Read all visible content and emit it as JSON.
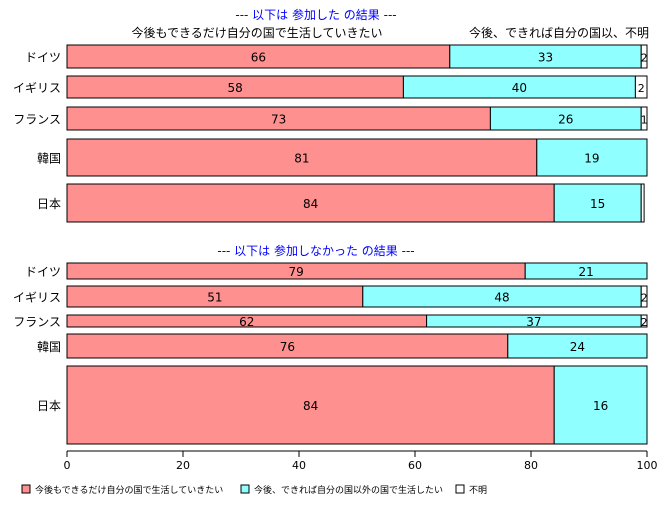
{
  "colors": {
    "keep": "#ff9090",
    "abroad": "#90ffff",
    "unknown": "#ffffff",
    "section_title": "#0000ff",
    "outline": "#000000"
  },
  "col_headers": {
    "keep": "今後もできるだけ自分の国で生活していきたい",
    "abroad": "今後、できれば自分の国以、不明"
  },
  "chart_data": [
    {
      "type": "bar",
      "stacked": true,
      "orientation": "horizontal",
      "title": "--- 以下は 参加した の結果 ---",
      "categories": [
        "ドイツ",
        "イギリス",
        "フランス",
        "韓国",
        "日本"
      ],
      "series": [
        {
          "name": "今後もできるだけ自分の国で生活していきたい",
          "color": "#ff9090",
          "values": [
            66,
            58,
            73,
            81,
            84
          ]
        },
        {
          "name": "今後、できれば自分の国以外の国で生活したい",
          "color": "#90ffff",
          "values": [
            33,
            40,
            26,
            19,
            15
          ]
        },
        {
          "name": "不明",
          "color": "#ffffff",
          "values": [
            2,
            2,
            1,
            0.5,
            0.5
          ]
        }
      ],
      "value_labels": {
        "series0": [
          "66",
          "58",
          "73",
          "81",
          "84"
        ],
        "series1": [
          "33",
          "40",
          "26",
          "19",
          "15"
        ],
        "series2": [
          "2",
          "2",
          "1",
          "",
          ""
        ]
      }
    },
    {
      "type": "bar",
      "stacked": true,
      "orientation": "horizontal",
      "title": "--- 以下は 参加しなかった の結果 ---",
      "categories": [
        "ドイツ",
        "イギリス",
        "フランス",
        "韓国",
        "日本"
      ],
      "series": [
        {
          "name": "今後もできるだけ自分の国で生活していきたい",
          "color": "#ff9090",
          "values": [
            79,
            51,
            62,
            76,
            84
          ]
        },
        {
          "name": "今後、できれば自分の国以外の国で生活したい",
          "color": "#90ffff",
          "values": [
            21,
            48,
            37,
            24,
            16
          ]
        },
        {
          "name": "不明",
          "color": "#ffffff",
          "values": [
            0,
            2,
            2,
            0.5,
            0.5
          ]
        }
      ],
      "value_labels": {
        "series0": [
          "79",
          "51",
          "62",
          "76",
          "84"
        ],
        "series1": [
          "21",
          "48",
          "37",
          "24",
          "16"
        ],
        "series2": [
          "",
          "2",
          "2",
          "",
          ""
        ]
      }
    }
  ],
  "x_axis": {
    "ticks": [
      0,
      20,
      40,
      60,
      80,
      100
    ],
    "tick_labels": [
      "0",
      "20",
      "40",
      "60",
      "80",
      "100"
    ],
    "xlim": [
      0,
      100
    ]
  },
  "legend": {
    "placement": "bottom",
    "items": [
      {
        "label": "今後もできるだけ自分の国で生活していきたい",
        "color": "#ff9090"
      },
      {
        "label": "今後、できれば自分の国以外の国で生活したい",
        "color": "#90ffff"
      },
      {
        "label": "不明",
        "color": "#ffffff"
      }
    ]
  }
}
